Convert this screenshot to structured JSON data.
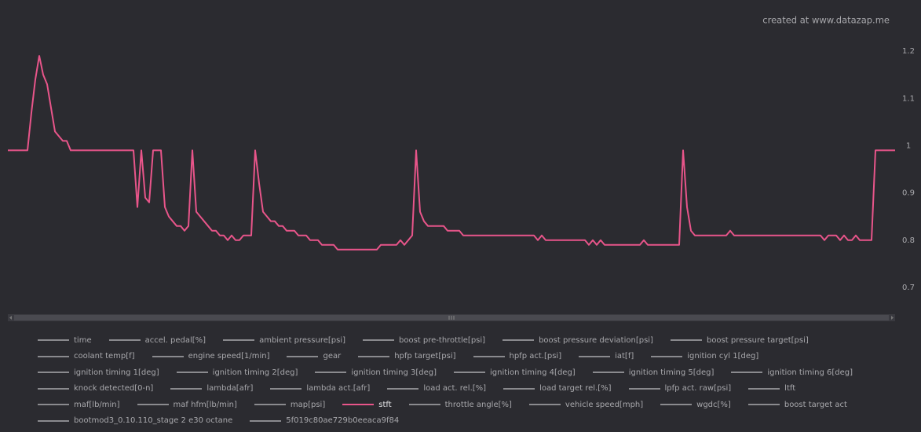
{
  "chart_data": {
    "type": "line",
    "credit": "created at www.datazap.me",
    "ylim": [
      0.65,
      1.25
    ],
    "yticks": [
      0.7,
      0.8,
      0.9,
      1,
      1.1,
      1.2
    ],
    "grid": false,
    "series": [
      {
        "name": "time",
        "visible": false,
        "color": "#8a8a8e"
      },
      {
        "name": "accel. pedal[%]",
        "visible": false,
        "color": "#8a8a8e"
      },
      {
        "name": "ambient pressure[psi]",
        "visible": false,
        "color": "#8a8a8e"
      },
      {
        "name": "boost pre-throttle[psi]",
        "visible": false,
        "color": "#8a8a8e"
      },
      {
        "name": "boost pressure deviation[psi]",
        "visible": false,
        "color": "#8a8a8e"
      },
      {
        "name": "boost pressure target[psi]",
        "visible": false,
        "color": "#8a8a8e"
      },
      {
        "name": "coolant temp[f]",
        "visible": false,
        "color": "#8a8a8e"
      },
      {
        "name": "engine speed[1/min]",
        "visible": false,
        "color": "#8a8a8e"
      },
      {
        "name": "gear",
        "visible": false,
        "color": "#8a8a8e"
      },
      {
        "name": "hpfp target[psi]",
        "visible": false,
        "color": "#8a8a8e"
      },
      {
        "name": "hpfp act.[psi]",
        "visible": false,
        "color": "#8a8a8e"
      },
      {
        "name": "iat[f]",
        "visible": false,
        "color": "#8a8a8e"
      },
      {
        "name": "ignition cyl 1[deg]",
        "visible": false,
        "color": "#8a8a8e"
      },
      {
        "name": "ignition timing 1[deg]",
        "visible": false,
        "color": "#8a8a8e"
      },
      {
        "name": "ignition timing 2[deg]",
        "visible": false,
        "color": "#8a8a8e"
      },
      {
        "name": "ignition timing 3[deg]",
        "visible": false,
        "color": "#8a8a8e"
      },
      {
        "name": "ignition timing 4[deg]",
        "visible": false,
        "color": "#8a8a8e"
      },
      {
        "name": "ignition timing 5[deg]",
        "visible": false,
        "color": "#8a8a8e"
      },
      {
        "name": "ignition timing 6[deg]",
        "visible": false,
        "color": "#8a8a8e"
      },
      {
        "name": "knock detected[0-n]",
        "visible": false,
        "color": "#8a8a8e"
      },
      {
        "name": "lambda[afr]",
        "visible": false,
        "color": "#8a8a8e"
      },
      {
        "name": "lambda act.[afr]",
        "visible": false,
        "color": "#8a8a8e"
      },
      {
        "name": "load act. rel.[%]",
        "visible": false,
        "color": "#8a8a8e"
      },
      {
        "name": "load target rel.[%]",
        "visible": false,
        "color": "#8a8a8e"
      },
      {
        "name": "lpfp act. raw[psi]",
        "visible": false,
        "color": "#8a8a8e"
      },
      {
        "name": "ltft",
        "visible": false,
        "color": "#8a8a8e"
      },
      {
        "name": "maf[lb/min]",
        "visible": false,
        "color": "#8a8a8e"
      },
      {
        "name": "maf hfm[lb/min]",
        "visible": false,
        "color": "#8a8a8e"
      },
      {
        "name": "map[psi]",
        "visible": false,
        "color": "#8a8a8e"
      },
      {
        "name": "stft",
        "visible": true,
        "color": "#e8558a",
        "values": [
          0.99,
          0.99,
          0.99,
          0.99,
          0.99,
          0.99,
          1.07,
          1.14,
          1.19,
          1.15,
          1.13,
          1.08,
          1.03,
          1.02,
          1.01,
          1.01,
          0.99,
          0.99,
          0.99,
          0.99,
          0.99,
          0.99,
          0.99,
          0.99,
          0.99,
          0.99,
          0.99,
          0.99,
          0.99,
          0.99,
          0.99,
          0.99,
          0.99,
          0.87,
          0.99,
          0.89,
          0.88,
          0.99,
          0.99,
          0.99,
          0.87,
          0.85,
          0.84,
          0.83,
          0.83,
          0.82,
          0.83,
          0.99,
          0.86,
          0.85,
          0.84,
          0.83,
          0.82,
          0.82,
          0.81,
          0.81,
          0.8,
          0.81,
          0.8,
          0.8,
          0.81,
          0.81,
          0.81,
          0.99,
          0.92,
          0.86,
          0.85,
          0.84,
          0.84,
          0.83,
          0.83,
          0.82,
          0.82,
          0.82,
          0.81,
          0.81,
          0.81,
          0.8,
          0.8,
          0.8,
          0.79,
          0.79,
          0.79,
          0.79,
          0.78,
          0.78,
          0.78,
          0.78,
          0.78,
          0.78,
          0.78,
          0.78,
          0.78,
          0.78,
          0.78,
          0.79,
          0.79,
          0.79,
          0.79,
          0.79,
          0.8,
          0.79,
          0.8,
          0.81,
          0.99,
          0.86,
          0.84,
          0.83,
          0.83,
          0.83,
          0.83,
          0.83,
          0.82,
          0.82,
          0.82,
          0.82,
          0.81,
          0.81,
          0.81,
          0.81,
          0.81,
          0.81,
          0.81,
          0.81,
          0.81,
          0.81,
          0.81,
          0.81,
          0.81,
          0.81,
          0.81,
          0.81,
          0.81,
          0.81,
          0.81,
          0.8,
          0.81,
          0.8,
          0.8,
          0.8,
          0.8,
          0.8,
          0.8,
          0.8,
          0.8,
          0.8,
          0.8,
          0.8,
          0.79,
          0.8,
          0.79,
          0.8,
          0.79,
          0.79,
          0.79,
          0.79,
          0.79,
          0.79,
          0.79,
          0.79,
          0.79,
          0.79,
          0.8,
          0.79,
          0.79,
          0.79,
          0.79,
          0.79,
          0.79,
          0.79,
          0.79,
          0.79,
          0.99,
          0.87,
          0.82,
          0.81,
          0.81,
          0.81,
          0.81,
          0.81,
          0.81,
          0.81,
          0.81,
          0.81,
          0.82,
          0.81,
          0.81,
          0.81,
          0.81,
          0.81,
          0.81,
          0.81,
          0.81,
          0.81,
          0.81,
          0.81,
          0.81,
          0.81,
          0.81,
          0.81,
          0.81,
          0.81,
          0.81,
          0.81,
          0.81,
          0.81,
          0.81,
          0.81,
          0.8,
          0.81,
          0.81,
          0.81,
          0.8,
          0.81,
          0.8,
          0.8,
          0.81,
          0.8,
          0.8,
          0.8,
          0.8,
          0.99,
          0.99,
          0.99,
          0.99,
          0.99,
          0.99
        ]
      },
      {
        "name": "throttle angle[%]",
        "visible": false,
        "color": "#8a8a8e"
      },
      {
        "name": "vehicle speed[mph]",
        "visible": false,
        "color": "#8a8a8e"
      },
      {
        "name": "wgdc[%]",
        "visible": false,
        "color": "#8a8a8e"
      },
      {
        "name": "boost target act",
        "visible": false,
        "color": "#8a8a8e"
      },
      {
        "name": "bootmod3_0.10.110_stage 2 e30 octane",
        "visible": false,
        "color": "#8a8a8e"
      },
      {
        "name": "5f019c80ae729b0eeaca9f84",
        "visible": false,
        "color": "#8a8a8e"
      }
    ]
  }
}
